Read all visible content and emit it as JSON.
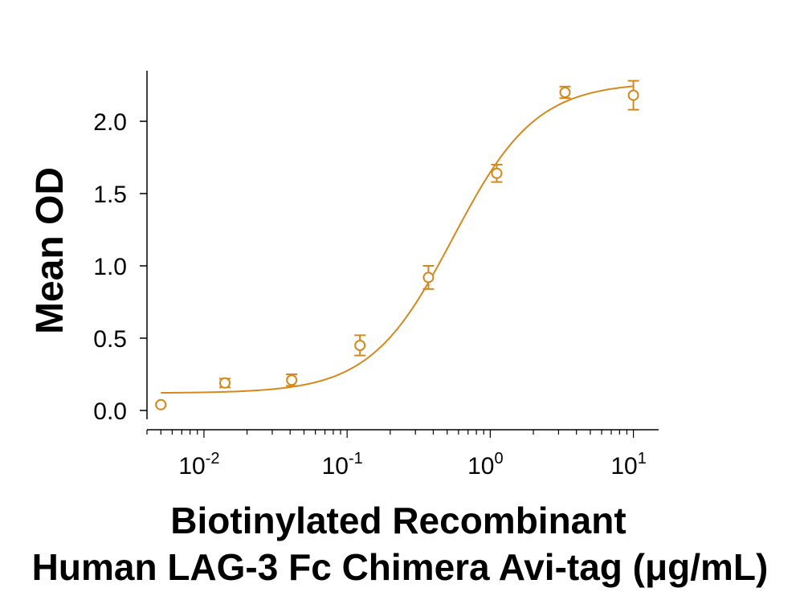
{
  "chart_data": {
    "type": "scatter",
    "title": "",
    "xlabel_lines": [
      "Biotinylated Recombinant",
      "Human LAG-3 Fc Chimera Avi-tag (μg/mL)"
    ],
    "ylabel": "Mean OD",
    "x_scale": "log",
    "xlim": [
      0.004,
      15
    ],
    "ylim": [
      -0.05,
      2.35
    ],
    "x_ticks": [
      {
        "base": "10",
        "exp": "-2",
        "value": 0.01
      },
      {
        "base": "10",
        "exp": "-1",
        "value": 0.1
      },
      {
        "base": "10",
        "exp": "0",
        "value": 1
      },
      {
        "base": "10",
        "exp": "1",
        "value": 10
      }
    ],
    "y_ticks": [
      {
        "label": "0.0",
        "value": 0.0
      },
      {
        "label": "0.5",
        "value": 0.5
      },
      {
        "label": "1.0",
        "value": 1.0
      },
      {
        "label": "1.5",
        "value": 1.5
      },
      {
        "label": "2.0",
        "value": 2.0
      }
    ],
    "grid": false,
    "color": "#D4891C",
    "series": [
      {
        "marker": "open-circle",
        "points": [
          {
            "x": 0.005,
            "y": 0.04,
            "err": 0.01
          },
          {
            "x": 0.014,
            "y": 0.19,
            "err": 0.03
          },
          {
            "x": 0.041,
            "y": 0.21,
            "err": 0.04
          },
          {
            "x": 0.123,
            "y": 0.45,
            "err": 0.07
          },
          {
            "x": 0.37,
            "y": 0.92,
            "err": 0.08
          },
          {
            "x": 1.11,
            "y": 1.64,
            "err": 0.06
          },
          {
            "x": 3.33,
            "y": 2.2,
            "err": 0.04
          },
          {
            "x": 10,
            "y": 2.18,
            "err": 0.1
          }
        ]
      }
    ],
    "fit": {
      "type": "4PL",
      "bottom": 0.12,
      "top": 2.27,
      "ec50": 0.55,
      "hill": 1.5,
      "x_range": [
        0.005,
        10
      ]
    }
  }
}
